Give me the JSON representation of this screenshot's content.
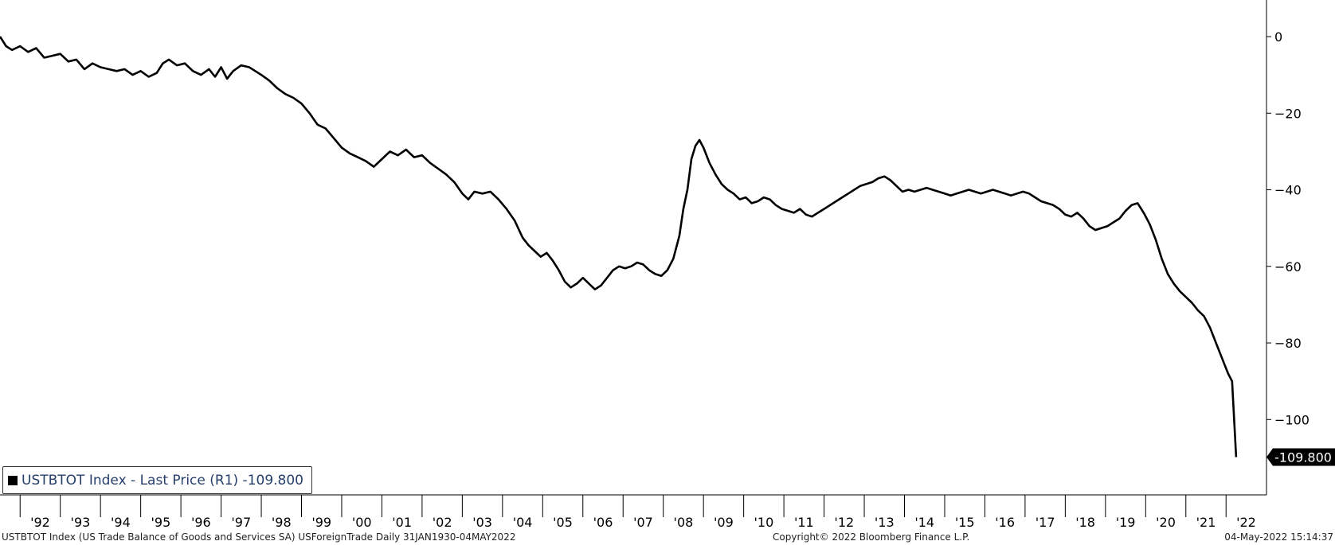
{
  "chart_data": {
    "type": "line",
    "title": "",
    "xlabel": "",
    "ylabel": "",
    "ylim": [
      -120,
      10
    ],
    "yticks": [
      0,
      -20,
      -40,
      -60,
      -80,
      -100
    ],
    "y_axis_position": "right",
    "last_value_label": "-109.800",
    "x_tick_labels": [
      "'92",
      "'93",
      "'94",
      "'95",
      "'96",
      "'97",
      "'98",
      "'99",
      "'00",
      "'01",
      "'02",
      "'03",
      "'04",
      "'05",
      "'06",
      "'07",
      "'08",
      "'09",
      "'10",
      "'11",
      "'12",
      "'13",
      "'14",
      "'15",
      "'16",
      "'17",
      "'18",
      "'19",
      "'20",
      "'21",
      "'22"
    ],
    "x_range": [
      1991.5,
      2022.55
    ],
    "series": [
      {
        "name": "USTBTOT Index - Last Price (R1) -109.800",
        "color": "#000000",
        "points": [
          [
            1991.5,
            0.0
          ],
          [
            1991.65,
            -2.5
          ],
          [
            1991.8,
            -3.5
          ],
          [
            1992.0,
            -2.5
          ],
          [
            1992.2,
            -4.0
          ],
          [
            1992.4,
            -3.0
          ],
          [
            1992.6,
            -5.5
          ],
          [
            1992.8,
            -5.0
          ],
          [
            1993.0,
            -4.5
          ],
          [
            1993.2,
            -6.5
          ],
          [
            1993.4,
            -6.0
          ],
          [
            1993.6,
            -8.5
          ],
          [
            1993.8,
            -7.0
          ],
          [
            1994.0,
            -8.0
          ],
          [
            1994.2,
            -8.5
          ],
          [
            1994.4,
            -9.0
          ],
          [
            1994.6,
            -8.5
          ],
          [
            1994.8,
            -10.0
          ],
          [
            1995.0,
            -9.0
          ],
          [
            1995.2,
            -10.5
          ],
          [
            1995.4,
            -9.5
          ],
          [
            1995.55,
            -7.0
          ],
          [
            1995.7,
            -6.0
          ],
          [
            1995.9,
            -7.5
          ],
          [
            1996.1,
            -7.0
          ],
          [
            1996.3,
            -9.0
          ],
          [
            1996.5,
            -10.0
          ],
          [
            1996.7,
            -8.5
          ],
          [
            1996.85,
            -10.5
          ],
          [
            1997.0,
            -8.0
          ],
          [
            1997.15,
            -11.0
          ],
          [
            1997.3,
            -9.0
          ],
          [
            1997.5,
            -7.5
          ],
          [
            1997.7,
            -8.0
          ],
          [
            1997.85,
            -9.0
          ],
          [
            1998.0,
            -10.0
          ],
          [
            1998.2,
            -11.5
          ],
          [
            1998.4,
            -13.5
          ],
          [
            1998.6,
            -15.0
          ],
          [
            1998.8,
            -16.0
          ],
          [
            1999.0,
            -17.5
          ],
          [
            1999.2,
            -20.0
          ],
          [
            1999.4,
            -23.0
          ],
          [
            1999.6,
            -24.0
          ],
          [
            1999.8,
            -26.5
          ],
          [
            2000.0,
            -29.0
          ],
          [
            2000.2,
            -30.5
          ],
          [
            2000.4,
            -31.5
          ],
          [
            2000.6,
            -32.5
          ],
          [
            2000.8,
            -34.0
          ],
          [
            2001.0,
            -32.0
          ],
          [
            2001.2,
            -30.0
          ],
          [
            2001.4,
            -31.0
          ],
          [
            2001.6,
            -29.5
          ],
          [
            2001.8,
            -31.5
          ],
          [
            2002.0,
            -31.0
          ],
          [
            2002.2,
            -33.0
          ],
          [
            2002.4,
            -34.5
          ],
          [
            2002.6,
            -36.0
          ],
          [
            2002.8,
            -38.0
          ],
          [
            2003.0,
            -41.0
          ],
          [
            2003.15,
            -42.5
          ],
          [
            2003.3,
            -40.5
          ],
          [
            2003.5,
            -41.0
          ],
          [
            2003.7,
            -40.5
          ],
          [
            2003.9,
            -42.5
          ],
          [
            2004.1,
            -45.0
          ],
          [
            2004.3,
            -48.0
          ],
          [
            2004.5,
            -52.5
          ],
          [
            2004.65,
            -54.5
          ],
          [
            2004.8,
            -56.0
          ],
          [
            2004.95,
            -57.5
          ],
          [
            2005.1,
            -56.5
          ],
          [
            2005.25,
            -58.5
          ],
          [
            2005.4,
            -61.0
          ],
          [
            2005.55,
            -64.0
          ],
          [
            2005.7,
            -65.5
          ],
          [
            2005.85,
            -64.5
          ],
          [
            2006.0,
            -63.0
          ],
          [
            2006.15,
            -64.5
          ],
          [
            2006.3,
            -66.0
          ],
          [
            2006.45,
            -65.0
          ],
          [
            2006.6,
            -63.0
          ],
          [
            2006.75,
            -61.0
          ],
          [
            2006.9,
            -60.0
          ],
          [
            2007.05,
            -60.5
          ],
          [
            2007.2,
            -60.0
          ],
          [
            2007.35,
            -59.0
          ],
          [
            2007.5,
            -59.5
          ],
          [
            2007.65,
            -61.0
          ],
          [
            2007.8,
            -62.0
          ],
          [
            2007.95,
            -62.5
          ],
          [
            2008.1,
            -61.0
          ],
          [
            2008.25,
            -58.0
          ],
          [
            2008.4,
            -52.0
          ],
          [
            2008.5,
            -45.0
          ],
          [
            2008.6,
            -40.0
          ],
          [
            2008.7,
            -32.0
          ],
          [
            2008.8,
            -28.5
          ],
          [
            2008.9,
            -27.0
          ],
          [
            2009.0,
            -29.0
          ],
          [
            2009.15,
            -33.0
          ],
          [
            2009.3,
            -36.0
          ],
          [
            2009.45,
            -38.5
          ],
          [
            2009.6,
            -40.0
          ],
          [
            2009.75,
            -41.0
          ],
          [
            2009.9,
            -42.5
          ],
          [
            2010.05,
            -42.0
          ],
          [
            2010.2,
            -43.5
          ],
          [
            2010.35,
            -43.0
          ],
          [
            2010.5,
            -42.0
          ],
          [
            2010.65,
            -42.5
          ],
          [
            2010.8,
            -44.0
          ],
          [
            2010.95,
            -45.0
          ],
          [
            2011.1,
            -45.5
          ],
          [
            2011.25,
            -46.0
          ],
          [
            2011.4,
            -45.0
          ],
          [
            2011.55,
            -46.5
          ],
          [
            2011.7,
            -47.0
          ],
          [
            2011.85,
            -46.0
          ],
          [
            2012.0,
            -45.0
          ],
          [
            2012.15,
            -44.0
          ],
          [
            2012.3,
            -43.0
          ],
          [
            2012.45,
            -42.0
          ],
          [
            2012.6,
            -41.0
          ],
          [
            2012.75,
            -40.0
          ],
          [
            2012.9,
            -39.0
          ],
          [
            2013.05,
            -38.5
          ],
          [
            2013.2,
            -38.0
          ],
          [
            2013.35,
            -37.0
          ],
          [
            2013.5,
            -36.5
          ],
          [
            2013.65,
            -37.5
          ],
          [
            2013.8,
            -39.0
          ],
          [
            2013.95,
            -40.5
          ],
          [
            2014.1,
            -40.0
          ],
          [
            2014.25,
            -40.5
          ],
          [
            2014.4,
            -40.0
          ],
          [
            2014.55,
            -39.5
          ],
          [
            2014.7,
            -40.0
          ],
          [
            2014.85,
            -40.5
          ],
          [
            2015.0,
            -41.0
          ],
          [
            2015.15,
            -41.5
          ],
          [
            2015.3,
            -41.0
          ],
          [
            2015.45,
            -40.5
          ],
          [
            2015.6,
            -40.0
          ],
          [
            2015.75,
            -40.5
          ],
          [
            2015.9,
            -41.0
          ],
          [
            2016.05,
            -40.5
          ],
          [
            2016.2,
            -40.0
          ],
          [
            2016.35,
            -40.5
          ],
          [
            2016.5,
            -41.0
          ],
          [
            2016.65,
            -41.5
          ],
          [
            2016.8,
            -41.0
          ],
          [
            2016.95,
            -40.5
          ],
          [
            2017.1,
            -41.0
          ],
          [
            2017.25,
            -42.0
          ],
          [
            2017.4,
            -43.0
          ],
          [
            2017.55,
            -43.5
          ],
          [
            2017.7,
            -44.0
          ],
          [
            2017.85,
            -45.0
          ],
          [
            2018.0,
            -46.5
          ],
          [
            2018.15,
            -47.0
          ],
          [
            2018.3,
            -46.0
          ],
          [
            2018.45,
            -47.5
          ],
          [
            2018.6,
            -49.5
          ],
          [
            2018.75,
            -50.5
          ],
          [
            2018.9,
            -50.0
          ],
          [
            2019.05,
            -49.5
          ],
          [
            2019.2,
            -48.5
          ],
          [
            2019.35,
            -47.5
          ],
          [
            2019.5,
            -45.5
          ],
          [
            2019.65,
            -44.0
          ],
          [
            2019.8,
            -43.5
          ],
          [
            2019.95,
            -46.0
          ],
          [
            2020.1,
            -49.0
          ],
          [
            2020.25,
            -53.0
          ],
          [
            2020.4,
            -58.0
          ],
          [
            2020.55,
            -62.0
          ],
          [
            2020.7,
            -64.5
          ],
          [
            2020.85,
            -66.5
          ],
          [
            2021.0,
            -68.0
          ],
          [
            2021.15,
            -69.5
          ],
          [
            2021.3,
            -71.5
          ],
          [
            2021.45,
            -73.0
          ],
          [
            2021.6,
            -76.0
          ],
          [
            2021.75,
            -80.0
          ],
          [
            2021.9,
            -84.0
          ],
          [
            2022.05,
            -88.0
          ],
          [
            2022.15,
            -90.0
          ],
          [
            2022.25,
            -109.8
          ]
        ]
      }
    ],
    "legend_position": "bottom-left",
    "grid": false
  },
  "footer": {
    "left": "USTBTOT Index (US Trade Balance of Goods and Services SA) USForeignTrade  Daily 31JAN1930-04MAY2022",
    "mid": "Copyright© 2022 Bloomberg Finance L.P.",
    "right": "04-May-2022 15:14:37"
  }
}
